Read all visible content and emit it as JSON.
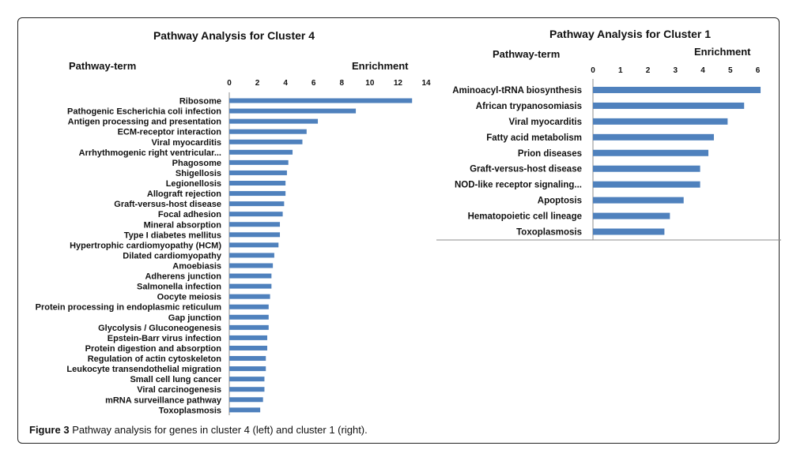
{
  "chart_data": [
    {
      "type": "bar",
      "orientation": "horizontal",
      "title": "Pathway Analysis for Cluster 4",
      "category_header": "Pathway-term",
      "value_header": "Enrichment",
      "xlim": [
        0,
        14
      ],
      "ticks": [
        0,
        2,
        4,
        6,
        8,
        10,
        12,
        14
      ],
      "bar_color": "#4f81bd",
      "categories": [
        "Ribosome",
        "Pathogenic Escherichia coli infection",
        "Antigen processing and presentation",
        "ECM-receptor interaction",
        "Viral myocarditis",
        "Arrhythmogenic right ventricular...",
        "Phagosome",
        "Shigellosis",
        "Legionellosis",
        "Allograft rejection",
        "Graft-versus-host disease",
        "Focal adhesion",
        "Mineral absorption",
        "Type I diabetes mellitus",
        "Hypertrophic cardiomyopathy (HCM)",
        "Dilated cardiomyopathy",
        "Amoebiasis",
        "Adherens junction",
        "Salmonella infection",
        "Oocyte meiosis",
        "Protein processing in endoplasmic reticulum",
        "Gap junction",
        "Glycolysis / Gluconeogenesis",
        "Epstein-Barr virus infection",
        "Protein digestion and absorption",
        "Regulation of actin cytoskeleton",
        "Leukocyte transendothelial migration",
        "Small cell lung cancer",
        "Viral carcinogenesis",
        "mRNA surveillance pathway",
        "Toxoplasmosis"
      ],
      "values": [
        13.0,
        9.0,
        6.3,
        5.5,
        5.2,
        4.5,
        4.2,
        4.1,
        4.0,
        4.0,
        3.9,
        3.8,
        3.6,
        3.6,
        3.5,
        3.2,
        3.1,
        3.0,
        3.0,
        2.9,
        2.8,
        2.8,
        2.8,
        2.7,
        2.7,
        2.6,
        2.6,
        2.5,
        2.5,
        2.4,
        2.2
      ]
    },
    {
      "type": "bar",
      "orientation": "horizontal",
      "title": "Pathway Analysis for Cluster 1",
      "category_header": "Pathway-term",
      "value_header": "Enrichment",
      "xlim": [
        0,
        6.3
      ],
      "ticks": [
        0,
        1,
        2,
        3,
        4,
        5,
        6
      ],
      "bar_color": "#4f81bd",
      "categories": [
        "Aminoacyl-tRNA biosynthesis",
        "African trypanosomiasis",
        "Viral myocarditis",
        "Fatty acid metabolism",
        "Prion diseases",
        "Graft-versus-host disease",
        "NOD-like receptor signaling...",
        "Apoptosis",
        "Hematopoietic cell lineage",
        "Toxoplasmosis"
      ],
      "values": [
        6.1,
        5.5,
        4.9,
        4.4,
        4.2,
        3.9,
        3.9,
        3.3,
        2.8,
        2.6
      ]
    }
  ],
  "caption": {
    "label": "Figure 3",
    "text": " Pathway analysis for genes in cluster 4 (left) and cluster 1 (right)."
  }
}
